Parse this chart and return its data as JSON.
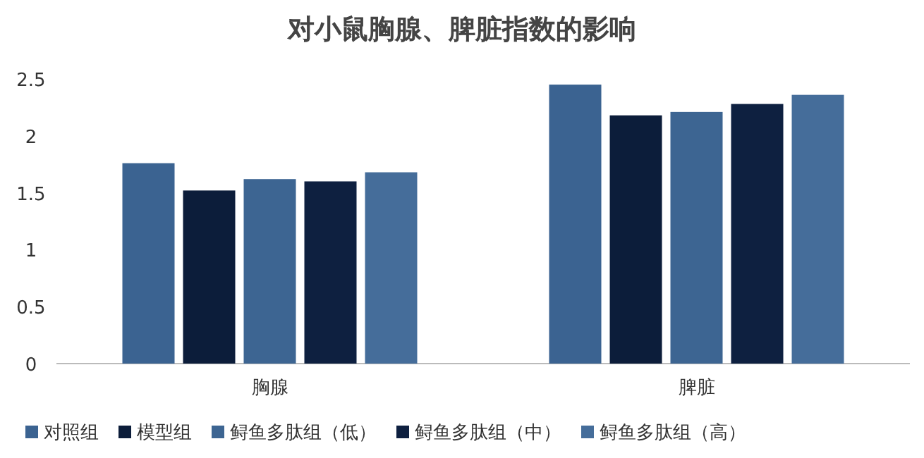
{
  "chart_data": {
    "type": "bar",
    "title": "对小鼠胸腺、脾脏指数的影响",
    "categories": [
      "胸腺",
      "脾脏"
    ],
    "series": [
      {
        "name": "对照组",
        "color": "#3b6391",
        "values": [
          1.76,
          2.45
        ]
      },
      {
        "name": "模型组",
        "color": "#0c1d3a",
        "values": [
          1.52,
          2.18
        ]
      },
      {
        "name": "鲟鱼多肽组（低）",
        "color": "#3d6592",
        "values": [
          1.62,
          2.21
        ]
      },
      {
        "name": "鲟鱼多肽组（中）",
        "color": "#0e2040",
        "values": [
          1.6,
          2.28
        ]
      },
      {
        "name": "鲟鱼多肽组（高）",
        "color": "#456d9a",
        "values": [
          1.68,
          2.36
        ]
      }
    ],
    "ylim": [
      0,
      2.5
    ],
    "yticks": [
      0,
      0.5,
      1,
      1.5,
      2,
      2.5
    ],
    "legend": "bottom",
    "grid": false
  }
}
